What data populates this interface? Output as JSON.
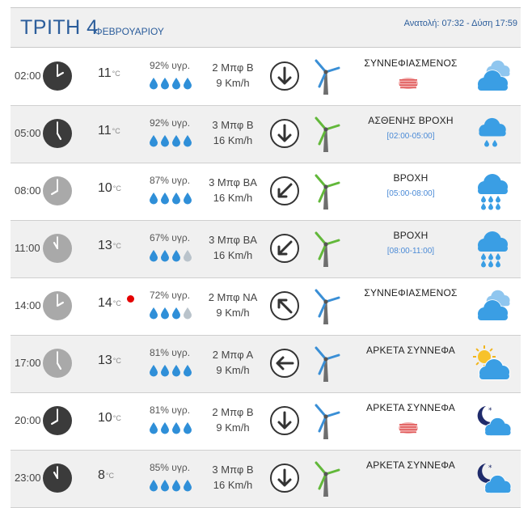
{
  "header": {
    "day": "ΤΡΙΤΗ 4",
    "month": "ΦΕΒΡΟΥΑΡΙΟΥ",
    "sun": "Ανατολή: 07:32 - Δύση 17:59"
  },
  "colors": {
    "accent": "#2b5d9b",
    "drop_full": "#2f8fd8",
    "drop_empty": "#b9c3cb",
    "cloud": "#3a9ee4",
    "sub": "#4a8ad6",
    "alert": "#e40000"
  },
  "rows": [
    {
      "time": "02:00",
      "clock_style": "dark",
      "clock_hour": 2,
      "temp": "11",
      "unit": "°C",
      "humidity": "92% υγρ.",
      "humidity_level": 4,
      "wind_force": "2 Μπφ Β",
      "wind_speed": "9 Km/h",
      "direction_icon": "arrow-down",
      "windmill_color": "blue",
      "condition": "ΣΥΝΝΕΦΙΑΣΜΕΝΟΣ",
      "period": "",
      "fog": true,
      "alert": false,
      "weather_icon": "cloudy-icon"
    },
    {
      "time": "05:00",
      "clock_style": "dark",
      "clock_hour": 5,
      "temp": "11",
      "unit": "°C",
      "humidity": "92% υγρ.",
      "humidity_level": 4,
      "wind_force": "3 Μπφ Β",
      "wind_speed": "16 Km/h",
      "direction_icon": "arrow-down",
      "windmill_color": "green",
      "condition": "ΑΣΘΕΝΗΣ ΒΡΟΧΗ",
      "period": "[02:00-05:00]",
      "fog": false,
      "alert": false,
      "weather_icon": "light-rain-icon"
    },
    {
      "time": "08:00",
      "clock_style": "light",
      "clock_hour": 8,
      "temp": "10",
      "unit": "°C",
      "humidity": "87% υγρ.",
      "humidity_level": 4,
      "wind_force": "3 Μπφ ΒΑ",
      "wind_speed": "16 Km/h",
      "direction_icon": "arrow-down-left",
      "windmill_color": "green",
      "condition": "ΒΡΟΧΗ",
      "period": "[05:00-08:00]",
      "fog": false,
      "alert": false,
      "weather_icon": "rain-icon"
    },
    {
      "time": "11:00",
      "clock_style": "light",
      "clock_hour": 11,
      "temp": "13",
      "unit": "°C",
      "humidity": "67% υγρ.",
      "humidity_level": 3,
      "wind_force": "3 Μπφ ΒΑ",
      "wind_speed": "16 Km/h",
      "direction_icon": "arrow-down-left",
      "windmill_color": "green",
      "condition": "ΒΡΟΧΗ",
      "period": "[08:00-11:00]",
      "fog": false,
      "alert": false,
      "weather_icon": "rain-icon"
    },
    {
      "time": "14:00",
      "clock_style": "light",
      "clock_hour": 2,
      "temp": "14",
      "unit": "°C",
      "humidity": "72% υγρ.",
      "humidity_level": 3,
      "wind_force": "2 Μπφ ΝΑ",
      "wind_speed": "9 Km/h",
      "direction_icon": "arrow-up-left",
      "windmill_color": "blue",
      "condition": "ΣΥΝΝΕΦΙΑΣΜΕΝΟΣ",
      "period": "",
      "fog": false,
      "alert": true,
      "weather_icon": "cloudy-icon"
    },
    {
      "time": "17:00",
      "clock_style": "light",
      "clock_hour": 5,
      "temp": "13",
      "unit": "°C",
      "humidity": "81% υγρ.",
      "humidity_level": 4,
      "wind_force": "2 Μπφ Α",
      "wind_speed": "9 Km/h",
      "direction_icon": "arrow-left",
      "windmill_color": "blue",
      "condition": "ΑΡΚΕΤΑ ΣΥΝΝΕΦΑ",
      "period": "",
      "fog": false,
      "alert": false,
      "weather_icon": "sun-cloud-icon"
    },
    {
      "time": "20:00",
      "clock_style": "dark",
      "clock_hour": 8,
      "temp": "10",
      "unit": "°C",
      "humidity": "81% υγρ.",
      "humidity_level": 4,
      "wind_force": "2 Μπφ Β",
      "wind_speed": "9 Km/h",
      "direction_icon": "arrow-down",
      "windmill_color": "blue",
      "condition": "ΑΡΚΕΤΑ ΣΥΝΝΕΦΑ",
      "period": "",
      "fog": true,
      "alert": false,
      "weather_icon": "moon-cloud-icon"
    },
    {
      "time": "23:00",
      "clock_style": "dark",
      "clock_hour": 11,
      "temp": "8",
      "unit": "°C",
      "humidity": "85% υγρ.",
      "humidity_level": 4,
      "wind_force": "3 Μπφ Β",
      "wind_speed": "16 Km/h",
      "direction_icon": "arrow-down",
      "windmill_color": "green",
      "condition": "ΑΡΚΕΤΑ ΣΥΝΝΕΦΑ",
      "period": "",
      "fog": false,
      "alert": false,
      "weather_icon": "moon-cloud-icon"
    }
  ]
}
